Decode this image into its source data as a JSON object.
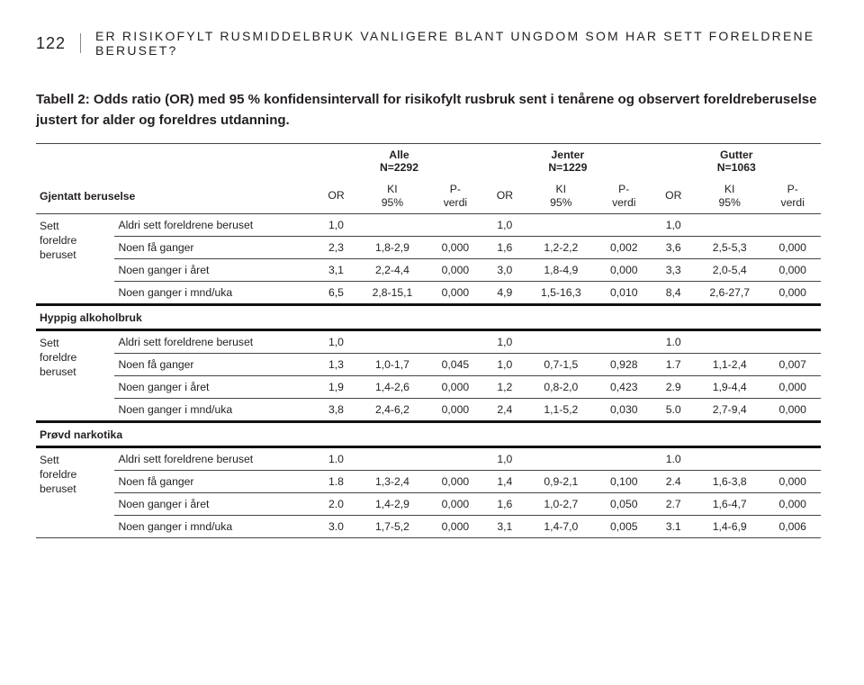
{
  "header": {
    "page_number": "122",
    "running_title": "ER RISIKOFYLT RUSMIDDELBRUK VANLIGERE BLANT UNGDOM SOM HAR SETT FORELDRENE BERUSET?"
  },
  "caption": "Tabell 2: Odds ratio (OR) med 95 % konfidensintervall for risikofylt rusbruk sent i tenårene og observert foreldreberuselse justert for alder og foreldres utdanning.",
  "groups": {
    "alle": {
      "label": "Alle",
      "n": "N=2292"
    },
    "jenter": {
      "label": "Jenter",
      "n": "N=1229"
    },
    "gutter": {
      "label": "Gutter",
      "n": "N=1063"
    }
  },
  "subcols": {
    "or": "OR",
    "ki": "KI\n95%",
    "p": "P-\nverdi"
  },
  "sections": [
    {
      "title": "Gjentatt beruselse",
      "rowhead": "Sett\nforeldre\nberuset",
      "rows": [
        {
          "label": "Aldri sett foreldrene beruset",
          "alle": {
            "or": "1,0",
            "ki": "",
            "p": ""
          },
          "jenter": {
            "or": "1,0",
            "ki": "",
            "p": ""
          },
          "gutter": {
            "or": "1,0",
            "ki": "",
            "p": ""
          }
        },
        {
          "label": "Noen få ganger",
          "alle": {
            "or": "2,3",
            "ki": "1,8-2,9",
            "p": "0,000"
          },
          "jenter": {
            "or": "1,6",
            "ki": "1,2-2,2",
            "p": "0,002"
          },
          "gutter": {
            "or": "3,6",
            "ki": "2,5-5,3",
            "p": "0,000"
          }
        },
        {
          "label": "Noen ganger i året",
          "alle": {
            "or": "3,1",
            "ki": "2,2-4,4",
            "p": "0,000"
          },
          "jenter": {
            "or": "3,0",
            "ki": "1,8-4,9",
            "p": "0,000"
          },
          "gutter": {
            "or": "3,3",
            "ki": "2,0-5,4",
            "p": "0,000"
          }
        },
        {
          "label": "Noen ganger i mnd/uka",
          "alle": {
            "or": "6,5",
            "ki": "2,8-15,1",
            "p": "0,000"
          },
          "jenter": {
            "or": "4,9",
            "ki": "1,5-16,3",
            "p": "0,010"
          },
          "gutter": {
            "or": "8,4",
            "ki": "2,6-27,7",
            "p": "0,000"
          }
        }
      ]
    },
    {
      "title": "Hyppig alkoholbruk",
      "rowhead": "Sett\nforeldre\nberuset",
      "rows": [
        {
          "label": "Aldri sett foreldrene beruset",
          "alle": {
            "or": "1,0",
            "ki": "",
            "p": ""
          },
          "jenter": {
            "or": "1,0",
            "ki": "",
            "p": ""
          },
          "gutter": {
            "or": "1.0",
            "ki": "",
            "p": ""
          }
        },
        {
          "label": "Noen få ganger",
          "alle": {
            "or": "1,3",
            "ki": "1,0-1,7",
            "p": "0,045"
          },
          "jenter": {
            "or": "1,0",
            "ki": "0,7-1,5",
            "p": "0,928"
          },
          "gutter": {
            "or": "1.7",
            "ki": "1,1-2,4",
            "p": "0,007"
          }
        },
        {
          "label": "Noen ganger i året",
          "alle": {
            "or": "1,9",
            "ki": "1,4-2,6",
            "p": "0,000"
          },
          "jenter": {
            "or": "1,2",
            "ki": "0,8-2,0",
            "p": "0,423"
          },
          "gutter": {
            "or": "2.9",
            "ki": "1,9-4,4",
            "p": "0,000"
          }
        },
        {
          "label": "Noen ganger i mnd/uka",
          "alle": {
            "or": "3,8",
            "ki": "2,4-6,2",
            "p": "0,000"
          },
          "jenter": {
            "or": "2,4",
            "ki": "1,1-5,2",
            "p": "0,030"
          },
          "gutter": {
            "or": "5.0",
            "ki": "2,7-9,4",
            "p": "0,000"
          }
        }
      ]
    },
    {
      "title": "Prøvd narkotika",
      "rowhead": "Sett\nforeldre\nberuset",
      "rows": [
        {
          "label": "Aldri sett foreldrene beruset",
          "alle": {
            "or": "1.0",
            "ki": "",
            "p": ""
          },
          "jenter": {
            "or": "1,0",
            "ki": "",
            "p": ""
          },
          "gutter": {
            "or": "1.0",
            "ki": "",
            "p": ""
          }
        },
        {
          "label": "Noen få ganger",
          "alle": {
            "or": "1.8",
            "ki": "1,3-2,4",
            "p": "0,000"
          },
          "jenter": {
            "or": "1,4",
            "ki": "0,9-2,1",
            "p": "0,100"
          },
          "gutter": {
            "or": "2.4",
            "ki": "1,6-3,8",
            "p": "0,000"
          }
        },
        {
          "label": "Noen ganger i året",
          "alle": {
            "or": "2.0",
            "ki": "1,4-2,9",
            "p": "0,000"
          },
          "jenter": {
            "or": "1,6",
            "ki": "1,0-2,7",
            "p": "0,050"
          },
          "gutter": {
            "or": "2.7",
            "ki": "1,6-4,7",
            "p": "0,000"
          }
        },
        {
          "label": "Noen ganger i mnd/uka",
          "alle": {
            "or": "3.0",
            "ki": "1,7-5,2",
            "p": "0,000"
          },
          "jenter": {
            "or": "3,1",
            "ki": "1,4-7,0",
            "p": "0,005"
          },
          "gutter": {
            "or": "3.1",
            "ki": "1,4-6,9",
            "p": "0,006"
          }
        }
      ]
    }
  ]
}
